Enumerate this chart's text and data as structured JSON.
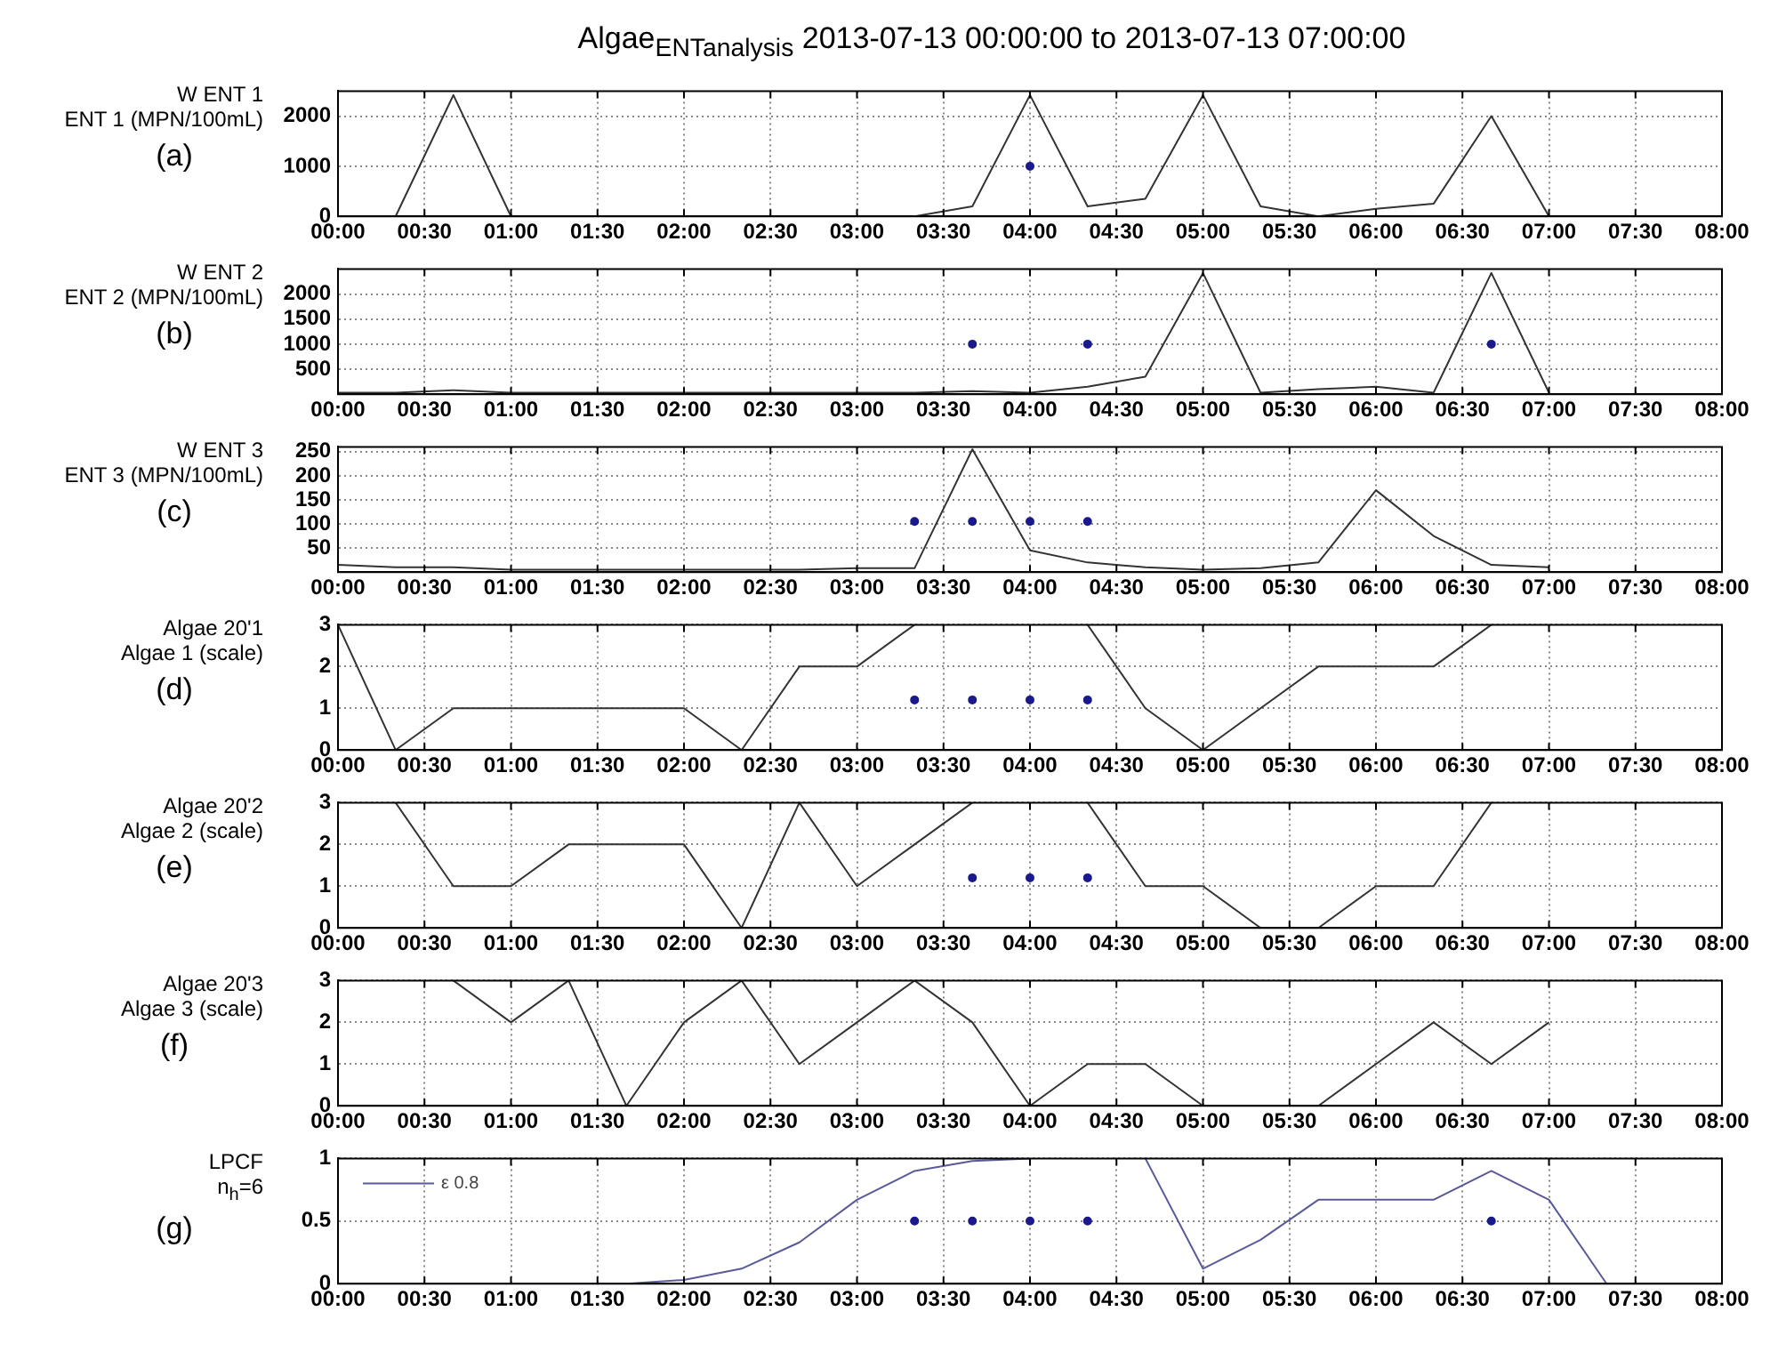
{
  "chart_data": [
    {
      "type": "line",
      "title": "Algae$_{ENTanalysis}$ 2013-07-13 00:00:00 to 2013-07-13 07:00:00",
      "ylabel": "W ENT 1\nENT 1 (MPN/100mL)",
      "annotations": [
        "(a)"
      ],
      "xlim": [
        0,
        8
      ],
      "xticks": [
        {
          "value": 0,
          "label": "00:00"
        },
        {
          "value": 0.5,
          "label": "00:30"
        },
        {
          "value": 1,
          "label": "01:00"
        },
        {
          "value": 1.5,
          "label": "01:30"
        },
        {
          "value": 2,
          "label": "02:00"
        },
        {
          "value": 2.5,
          "label": "02:30"
        },
        {
          "value": 3,
          "label": "03:00"
        },
        {
          "value": 3.5,
          "label": "03:30"
        },
        {
          "value": 4,
          "label": "04:00"
        },
        {
          "value": 4.5,
          "label": "04:30"
        },
        {
          "value": 5,
          "label": "05:00"
        },
        {
          "value": 5.5,
          "label": "05:30"
        },
        {
          "value": 6,
          "label": "06:00"
        },
        {
          "value": 6.5,
          "label": "06:30"
        },
        {
          "value": 7,
          "label": "07:00"
        },
        {
          "value": 7.5,
          "label": "07:30"
        },
        {
          "value": 8,
          "label": "08:00"
        }
      ],
      "ylim": [
        0,
        2500
      ],
      "yticks": [
        0,
        1000,
        2000
      ],
      "grid": true,
      "x": [
        0,
        0.333,
        0.667,
        1,
        1.333,
        1.667,
        2,
        2.333,
        2.667,
        3,
        3.333,
        3.667,
        4,
        4.333,
        4.667,
        5,
        5.333,
        5.667,
        6,
        6.333,
        6.667,
        7
      ],
      "series": [
        {
          "color": "#333333",
          "values": [
            0,
            0,
            2420,
            0,
            0,
            0,
            0,
            0,
            0,
            0,
            0,
            200,
            2420,
            200,
            350,
            2420,
            200,
            0,
            150,
            250,
            2000,
            0
          ]
        },
        {
          "type": "scatter",
          "color": "#1a1a8c",
          "marker": "circle",
          "x": [
            4
          ],
          "values": [
            1000
          ]
        }
      ]
    },
    {
      "type": "line",
      "ylabel": "W ENT 2\nENT 2 (MPN/100mL)",
      "annotations": [
        "(b)"
      ],
      "xlim": [
        0,
        8
      ],
      "xticks": [
        {
          "value": 0,
          "label": "00:00"
        },
        {
          "value": 0.5,
          "label": "00:30"
        },
        {
          "value": 1,
          "label": "01:00"
        },
        {
          "value": 1.5,
          "label": "01:30"
        },
        {
          "value": 2,
          "label": "02:00"
        },
        {
          "value": 2.5,
          "label": "02:30"
        },
        {
          "value": 3,
          "label": "03:00"
        },
        {
          "value": 3.5,
          "label": "03:30"
        },
        {
          "value": 4,
          "label": "04:00"
        },
        {
          "value": 4.5,
          "label": "04:30"
        },
        {
          "value": 5,
          "label": "05:00"
        },
        {
          "value": 5.5,
          "label": "05:30"
        },
        {
          "value": 6,
          "label": "06:00"
        },
        {
          "value": 6.5,
          "label": "06:30"
        },
        {
          "value": 7,
          "label": "07:00"
        },
        {
          "value": 7.5,
          "label": "07:30"
        },
        {
          "value": 8,
          "label": "08:00"
        }
      ],
      "ylim": [
        0,
        2500
      ],
      "yticks": [
        500,
        1000,
        1500,
        2000
      ],
      "grid": true,
      "x": [
        0,
        0.333,
        0.667,
        1,
        1.333,
        1.667,
        2,
        2.333,
        2.667,
        3,
        3.333,
        3.667,
        4,
        4.333,
        4.667,
        5,
        5.333,
        5.667,
        6,
        6.333,
        6.667,
        7
      ],
      "series": [
        {
          "color": "#333333",
          "values": [
            30,
            30,
            80,
            30,
            30,
            30,
            30,
            30,
            30,
            30,
            30,
            60,
            30,
            150,
            350,
            2420,
            30,
            100,
            150,
            30,
            2420,
            30
          ]
        },
        {
          "type": "scatter",
          "color": "#1a1a8c",
          "marker": "circle",
          "x": [
            3.667,
            4.333,
            6.667
          ],
          "values": [
            1000,
            1000,
            1000
          ]
        }
      ]
    },
    {
      "type": "line",
      "ylabel": "W ENT 3\nENT 3 (MPN/100mL)",
      "annotations": [
        "(c)"
      ],
      "xlim": [
        0,
        8
      ],
      "xticks": [
        {
          "value": 0,
          "label": "00:00"
        },
        {
          "value": 0.5,
          "label": "00:30"
        },
        {
          "value": 1,
          "label": "01:00"
        },
        {
          "value": 1.5,
          "label": "01:30"
        },
        {
          "value": 2,
          "label": "02:00"
        },
        {
          "value": 2.5,
          "label": "02:30"
        },
        {
          "value": 3,
          "label": "03:00"
        },
        {
          "value": 3.5,
          "label": "03:30"
        },
        {
          "value": 4,
          "label": "04:00"
        },
        {
          "value": 4.5,
          "label": "04:30"
        },
        {
          "value": 5,
          "label": "05:00"
        },
        {
          "value": 5.5,
          "label": "05:30"
        },
        {
          "value": 6,
          "label": "06:00"
        },
        {
          "value": 6.5,
          "label": "06:30"
        },
        {
          "value": 7,
          "label": "07:00"
        },
        {
          "value": 7.5,
          "label": "07:30"
        },
        {
          "value": 8,
          "label": "08:00"
        }
      ],
      "ylim": [
        0,
        260
      ],
      "yticks": [
        50,
        100,
        150,
        200,
        250
      ],
      "grid": true,
      "x": [
        0,
        0.333,
        0.667,
        1,
        1.333,
        1.667,
        2,
        2.333,
        2.667,
        3,
        3.333,
        3.667,
        4,
        4.333,
        4.667,
        5,
        5.333,
        5.667,
        6,
        6.333,
        6.667,
        7
      ],
      "series": [
        {
          "color": "#333333",
          "values": [
            15,
            10,
            10,
            5,
            5,
            5,
            5,
            5,
            5,
            8,
            8,
            255,
            45,
            20,
            10,
            5,
            8,
            20,
            170,
            75,
            15,
            10
          ]
        },
        {
          "type": "scatter",
          "color": "#1a1a8c",
          "marker": "circle",
          "x": [
            3.333,
            3.667,
            4,
            4.333
          ],
          "values": [
            105,
            105,
            105,
            105
          ]
        }
      ]
    },
    {
      "type": "line",
      "ylabel": "Algae 20'1\nAlgae 1 (scale)",
      "annotations": [
        "(d)"
      ],
      "xlim": [
        0,
        8
      ],
      "xticks": [
        {
          "value": 0,
          "label": "00:00"
        },
        {
          "value": 0.5,
          "label": "00:30"
        },
        {
          "value": 1,
          "label": "01:00"
        },
        {
          "value": 1.5,
          "label": "01:30"
        },
        {
          "value": 2,
          "label": "02:00"
        },
        {
          "value": 2.5,
          "label": "02:30"
        },
        {
          "value": 3,
          "label": "03:00"
        },
        {
          "value": 3.5,
          "label": "03:30"
        },
        {
          "value": 4,
          "label": "04:00"
        },
        {
          "value": 4.5,
          "label": "04:30"
        },
        {
          "value": 5,
          "label": "05:00"
        },
        {
          "value": 5.5,
          "label": "05:30"
        },
        {
          "value": 6,
          "label": "06:00"
        },
        {
          "value": 6.5,
          "label": "06:30"
        },
        {
          "value": 7,
          "label": "07:00"
        },
        {
          "value": 7.5,
          "label": "07:30"
        },
        {
          "value": 8,
          "label": "08:00"
        }
      ],
      "ylim": [
        0,
        3
      ],
      "yticks": [
        0,
        1,
        2,
        3
      ],
      "grid": true,
      "x": [
        0,
        0.333,
        0.667,
        1,
        1.333,
        1.667,
        2,
        2.333,
        2.667,
        3,
        3.333,
        3.667,
        4,
        4.333,
        4.667,
        5,
        5.333,
        5.667,
        6,
        6.333,
        6.667
      ],
      "series": [
        {
          "color": "#333333",
          "values": [
            3,
            0,
            1,
            1,
            1,
            1,
            1,
            0,
            2,
            2,
            3,
            null,
            null,
            3,
            1,
            0,
            1,
            2,
            2,
            2,
            3
          ]
        },
        {
          "type": "scatter",
          "color": "#1a1a8c",
          "marker": "circle",
          "x": [
            3.333,
            3.667,
            4,
            4.333
          ],
          "values": [
            1.2,
            1.2,
            1.2,
            1.2
          ]
        }
      ]
    },
    {
      "type": "line",
      "ylabel": "Algae 20'2\nAlgae 2 (scale)",
      "annotations": [
        "(e)"
      ],
      "xlim": [
        0,
        8
      ],
      "xticks": [
        {
          "value": 0,
          "label": "00:00"
        },
        {
          "value": 0.5,
          "label": "00:30"
        },
        {
          "value": 1,
          "label": "01:00"
        },
        {
          "value": 1.5,
          "label": "01:30"
        },
        {
          "value": 2,
          "label": "02:00"
        },
        {
          "value": 2.5,
          "label": "02:30"
        },
        {
          "value": 3,
          "label": "03:00"
        },
        {
          "value": 3.5,
          "label": "03:30"
        },
        {
          "value": 4,
          "label": "04:00"
        },
        {
          "value": 4.5,
          "label": "04:30"
        },
        {
          "value": 5,
          "label": "05:00"
        },
        {
          "value": 5.5,
          "label": "05:30"
        },
        {
          "value": 6,
          "label": "06:00"
        },
        {
          "value": 6.5,
          "label": "06:30"
        },
        {
          "value": 7,
          "label": "07:00"
        },
        {
          "value": 7.5,
          "label": "07:30"
        },
        {
          "value": 8,
          "label": "08:00"
        }
      ],
      "ylim": [
        0,
        3
      ],
      "yticks": [
        0,
        1,
        2,
        3
      ],
      "grid": true,
      "x": [
        0.333,
        0.667,
        1,
        1.333,
        1.667,
        2,
        2.333,
        2.667,
        3,
        3.333,
        3.667,
        4,
        4.333,
        4.667,
        5,
        5.333,
        5.667,
        6,
        6.333,
        6.667
      ],
      "series": [
        {
          "color": "#333333",
          "values": [
            3,
            1,
            1,
            2,
            2,
            2,
            0,
            3,
            1,
            2,
            3,
            null,
            3,
            1,
            1,
            0,
            0,
            1,
            1,
            3
          ]
        },
        {
          "type": "scatter",
          "color": "#1a1a8c",
          "marker": "circle",
          "x": [
            3.667,
            4,
            4.333
          ],
          "values": [
            1.2,
            1.2,
            1.2
          ]
        }
      ]
    },
    {
      "type": "line",
      "ylabel": "Algae 20'3\nAlgae 3 (scale)",
      "annotations": [
        "(f)"
      ],
      "xlim": [
        0,
        8
      ],
      "xticks": [
        {
          "value": 0,
          "label": "00:00"
        },
        {
          "value": 0.5,
          "label": "00:30"
        },
        {
          "value": 1,
          "label": "01:00"
        },
        {
          "value": 1.5,
          "label": "01:30"
        },
        {
          "value": 2,
          "label": "02:00"
        },
        {
          "value": 2.5,
          "label": "02:30"
        },
        {
          "value": 3,
          "label": "03:00"
        },
        {
          "value": 3.5,
          "label": "03:30"
        },
        {
          "value": 4,
          "label": "04:00"
        },
        {
          "value": 4.5,
          "label": "04:30"
        },
        {
          "value": 5,
          "label": "05:00"
        },
        {
          "value": 5.5,
          "label": "05:30"
        },
        {
          "value": 6,
          "label": "06:00"
        },
        {
          "value": 6.5,
          "label": "06:30"
        },
        {
          "value": 7,
          "label": "07:00"
        },
        {
          "value": 7.5,
          "label": "07:30"
        },
        {
          "value": 8,
          "label": "08:00"
        }
      ],
      "ylim": [
        0,
        3
      ],
      "yticks": [
        0,
        1,
        2,
        3
      ],
      "grid": true,
      "x": [
        0.667,
        1,
        1.333,
        1.667,
        2,
        2.333,
        2.667,
        3,
        3.333,
        3.667,
        4,
        4.333,
        4.667,
        5,
        5.333,
        5.667,
        6,
        6.333,
        6.667,
        7
      ],
      "series": [
        {
          "color": "#333333",
          "values": [
            3,
            2,
            3,
            0,
            2,
            3,
            1,
            2,
            3,
            2,
            0,
            1,
            1,
            0,
            0,
            0,
            1,
            2,
            1,
            2
          ]
        }
      ]
    },
    {
      "type": "line",
      "ylabel": "LPCF\nn$_{h}$=6",
      "annotations": [
        "(g)"
      ],
      "legend": "top left",
      "xlim": [
        0,
        8
      ],
      "xticks": [
        {
          "value": 0,
          "label": "00:00"
        },
        {
          "value": 0.5,
          "label": "00:30"
        },
        {
          "value": 1,
          "label": "01:00"
        },
        {
          "value": 1.5,
          "label": "01:30"
        },
        {
          "value": 2,
          "label": "02:00"
        },
        {
          "value": 2.5,
          "label": "02:30"
        },
        {
          "value": 3,
          "label": "03:00"
        },
        {
          "value": 3.5,
          "label": "03:30"
        },
        {
          "value": 4,
          "label": "04:00"
        },
        {
          "value": 4.5,
          "label": "04:30"
        },
        {
          "value": 5,
          "label": "05:00"
        },
        {
          "value": 5.5,
          "label": "05:30"
        },
        {
          "value": 6,
          "label": "06:00"
        },
        {
          "value": 6.5,
          "label": "06:30"
        },
        {
          "value": 7,
          "label": "07:00"
        },
        {
          "value": 7.5,
          "label": "07:30"
        },
        {
          "value": 8,
          "label": "08:00"
        }
      ],
      "ylim": [
        0,
        1
      ],
      "yticks": [
        0,
        0.5,
        1
      ],
      "grid": true,
      "x": [
        0,
        0.333,
        0.667,
        1,
        1.333,
        1.667,
        2,
        2.333,
        2.667,
        3,
        3.333,
        3.667,
        4,
        4.333,
        4.667,
        5,
        5.333,
        5.667,
        6,
        6.333,
        6.667,
        7,
        7.333
      ],
      "series": [
        {
          "name": "ε 0.8",
          "color": "#5a5a9a",
          "values": [
            0,
            0,
            0,
            0,
            0,
            0,
            0.03,
            0.12,
            0.33,
            0.67,
            0.9,
            0.98,
            1,
            null,
            1,
            0.12,
            0.35,
            0.67,
            0.67,
            0.67,
            0.9,
            0.67,
            0
          ]
        },
        {
          "type": "scatter",
          "color": "#1a1a8c",
          "marker": "circle",
          "x": [
            3.333,
            3.667,
            4,
            4.333,
            6.667
          ],
          "values": [
            0.5,
            0.5,
            0.5,
            0.5,
            0.5
          ]
        }
      ]
    }
  ]
}
